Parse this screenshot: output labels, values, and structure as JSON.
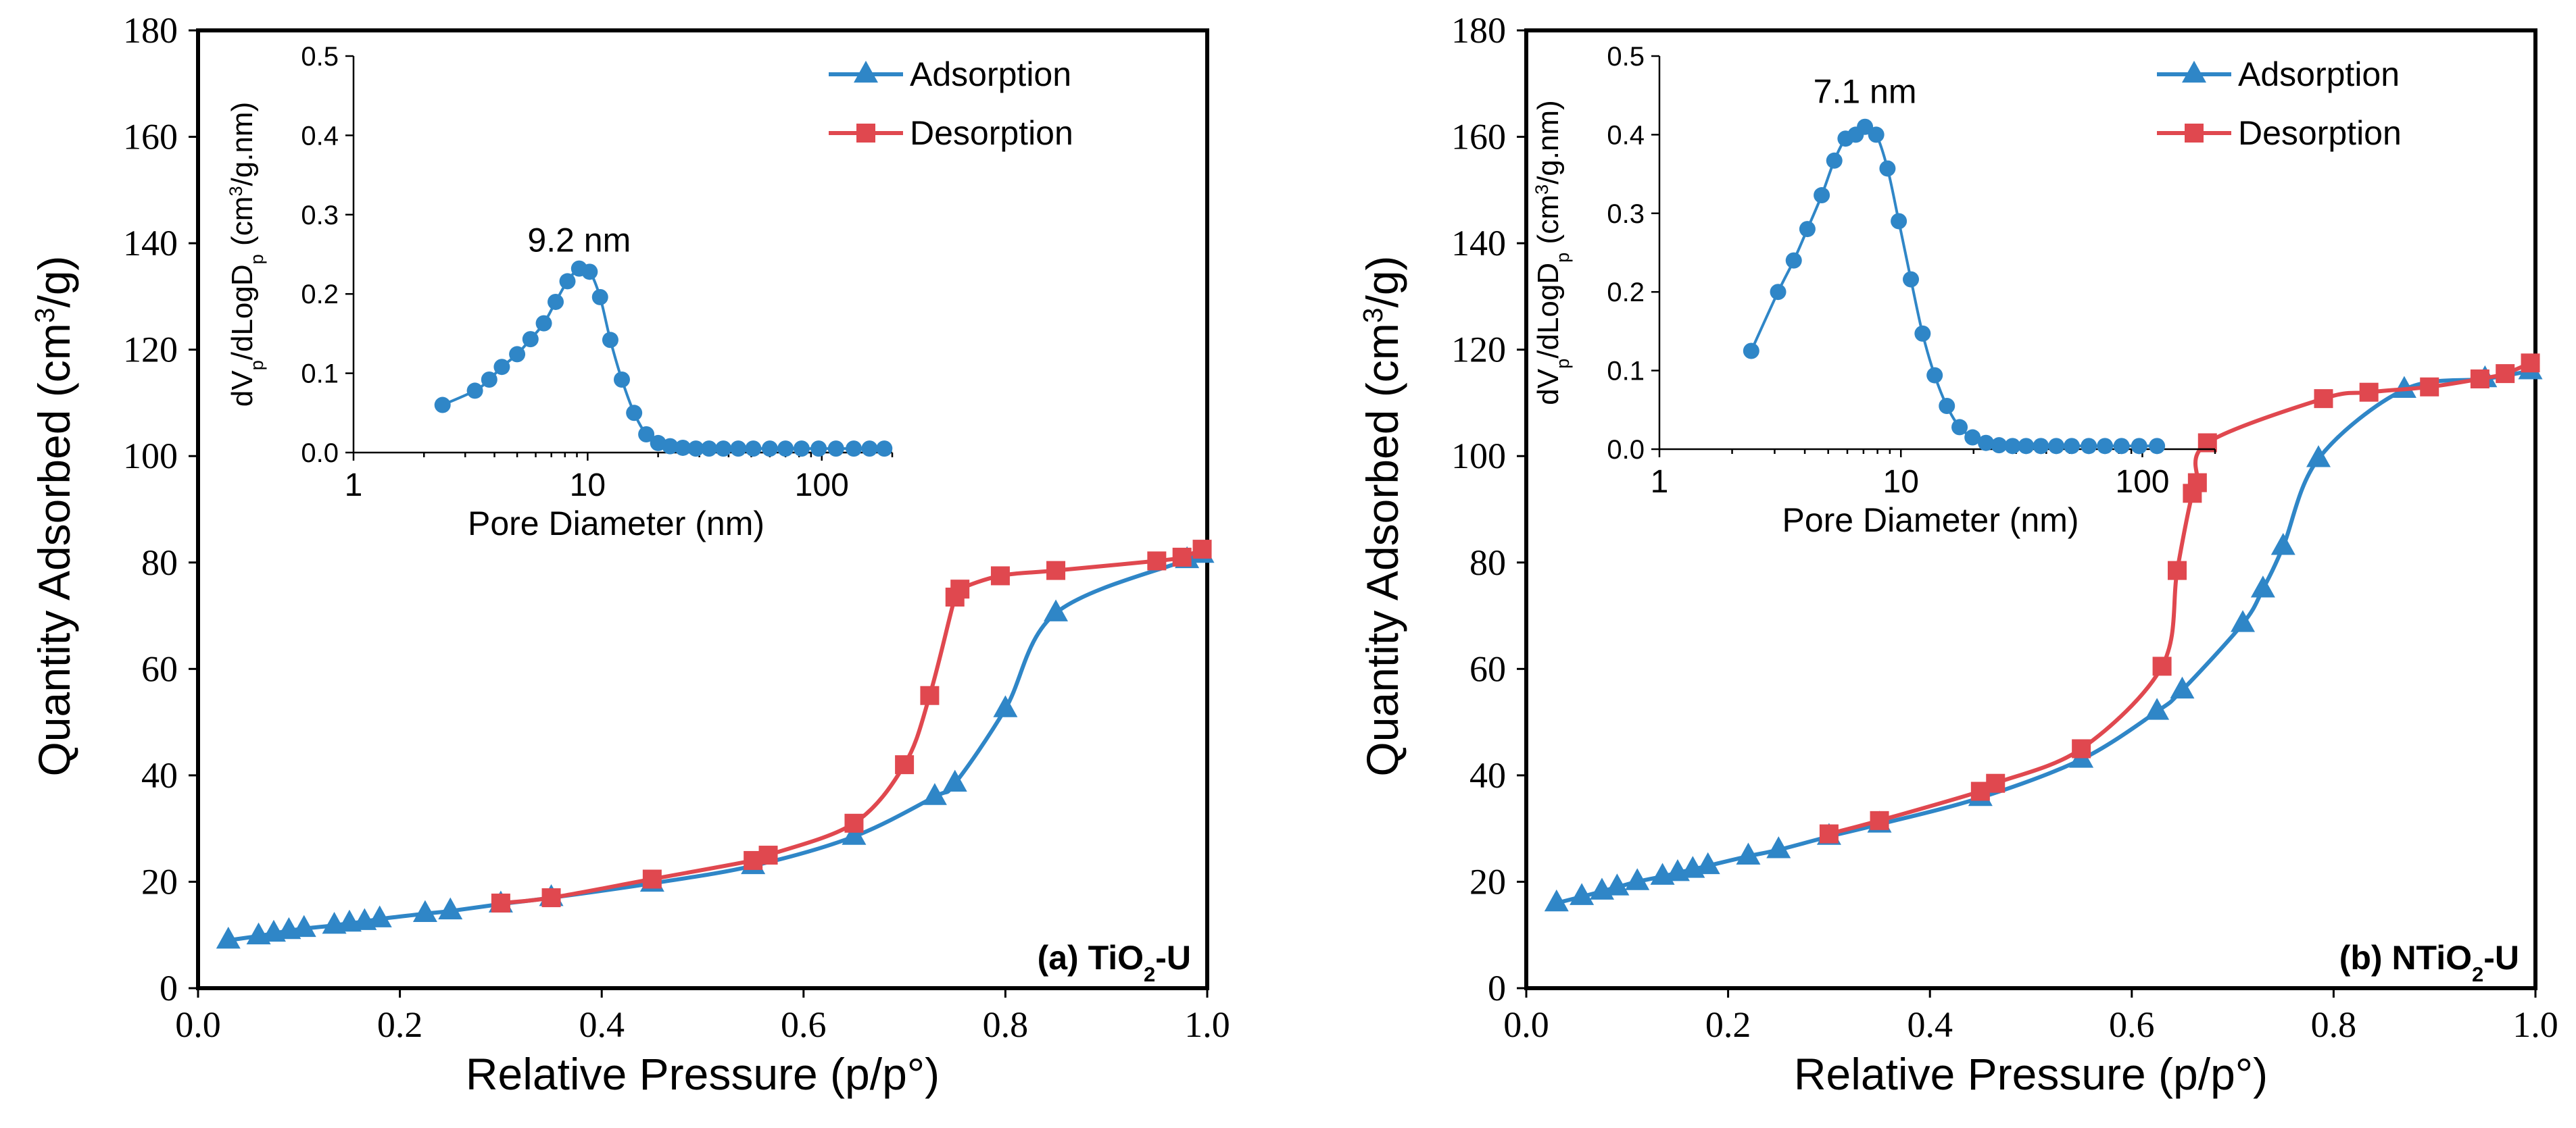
{
  "colors": {
    "adsorption": "#2f86c7",
    "desorption": "#e0484f",
    "psd": "#2f86c7"
  },
  "chart_data": [
    {
      "type": "line",
      "xlabel": "Relative Pressure (p/p°)",
      "ylabel_parts": [
        "Quantity Adsorbed (cm",
        "3",
        "/g)"
      ],
      "xlim": [
        0,
        1.0
      ],
      "ylim": [
        0,
        180
      ],
      "x_ticks": [
        0,
        0.2,
        0.4,
        0.6,
        0.8,
        1.0
      ],
      "x_tick_labels": [
        "0.0",
        "0.2",
        "0.4",
        "0.6",
        "0.8",
        "1.0"
      ],
      "y_ticks": [
        0,
        20,
        40,
        60,
        80,
        100,
        120,
        140,
        160,
        180
      ],
      "y_tick_labels": [
        "0",
        "20",
        "40",
        "60",
        "80",
        "100",
        "120",
        "140",
        "160",
        "180"
      ],
      "legend": [
        "Adsorption",
        "Desorption"
      ],
      "legend_position": "top-right",
      "label_parts": [
        "(a) TiO",
        "2",
        "-U"
      ],
      "series": [
        {
          "name": "Adsorption",
          "x": [
            0.03,
            0.06,
            0.075,
            0.09,
            0.105,
            0.135,
            0.15,
            0.165,
            0.18,
            0.225,
            0.25,
            0.3,
            0.35,
            0.45,
            0.55,
            0.65,
            0.73,
            0.75,
            0.8,
            0.85,
            0.98,
            0.995
          ],
          "y": [
            9.0,
            9.8,
            10.3,
            10.8,
            11.2,
            11.8,
            12.2,
            12.5,
            13.0,
            14.0,
            14.5,
            15.8,
            17.0,
            19.7,
            23.0,
            28.5,
            36.0,
            38.5,
            52.5,
            70.5,
            80.5,
            81.5
          ]
        },
        {
          "name": "Desorption",
          "x": [
            0.995,
            0.975,
            0.95,
            0.85,
            0.795,
            0.755,
            0.75,
            0.725,
            0.7,
            0.65,
            0.565,
            0.55,
            0.45,
            0.35,
            0.3
          ],
          "y": [
            82.5,
            81.0,
            80.3,
            78.5,
            77.5,
            75.0,
            73.5,
            55.0,
            42.0,
            31.0,
            25.0,
            24.0,
            20.5,
            17.0,
            16.0
          ]
        }
      ],
      "inset": {
        "type": "line",
        "xscale": "log",
        "xlabel": "Pore Diameter (nm)",
        "ylabel_parts": [
          "dV",
          "p",
          "/dLogD",
          "p",
          " (cm",
          "3",
          "/g.nm)"
        ],
        "xlim": [
          1,
          200
        ],
        "ylim": [
          0,
          0.5
        ],
        "x_ticks": [
          1,
          10,
          100
        ],
        "x_tick_labels": [
          "1",
          "10",
          "100"
        ],
        "y_ticks": [
          0,
          0.1,
          0.2,
          0.3,
          0.4,
          0.5
        ],
        "y_tick_labels": [
          "0.0",
          "0.1",
          "0.2",
          "0.3",
          "0.4",
          "0.5"
        ],
        "annotation": "9.2 nm",
        "annotation_at": [
          9.2,
          0.243
        ],
        "x": [
          2.4,
          3.3,
          3.8,
          4.3,
          5.0,
          5.7,
          6.5,
          7.3,
          8.2,
          9.2,
          10.2,
          11.3,
          12.5,
          14.0,
          15.8,
          17.8,
          20.0,
          22.5,
          25.5,
          29.0,
          33.0,
          38.0,
          44.0,
          51.0,
          60.0,
          70.0,
          82.0,
          97.0,
          115.0,
          137.0,
          160.0,
          185.0
        ],
        "y": [
          0.06,
          0.078,
          0.092,
          0.108,
          0.124,
          0.143,
          0.163,
          0.19,
          0.216,
          0.232,
          0.228,
          0.196,
          0.142,
          0.092,
          0.05,
          0.023,
          0.012,
          0.008,
          0.006,
          0.005,
          0.005,
          0.005,
          0.005,
          0.005,
          0.005,
          0.005,
          0.005,
          0.005,
          0.005,
          0.005,
          0.005,
          0.005
        ]
      }
    },
    {
      "type": "line",
      "xlabel": "Relative Pressure (p/p°)",
      "ylabel_parts": [
        "Quantity Adsorbed (cm",
        "3",
        "/g)"
      ],
      "xlim": [
        0,
        1.0
      ],
      "ylim": [
        0,
        180
      ],
      "x_ticks": [
        0,
        0.2,
        0.4,
        0.6,
        0.8,
        1.0
      ],
      "x_tick_labels": [
        "0.0",
        "0.2",
        "0.4",
        "0.6",
        "0.8",
        "1.0"
      ],
      "y_ticks": [
        0,
        20,
        40,
        60,
        80,
        100,
        120,
        140,
        160,
        180
      ],
      "y_tick_labels": [
        "0",
        "20",
        "40",
        "60",
        "80",
        "100",
        "120",
        "140",
        "160",
        "180"
      ],
      "legend": [
        "Adsorption",
        "Desorption"
      ],
      "legend_position": "top-right",
      "label_parts": [
        "(b) NTiO",
        "2",
        "-U"
      ],
      "series": [
        {
          "name": "Adsorption",
          "x": [
            0.03,
            0.055,
            0.075,
            0.09,
            0.11,
            0.135,
            0.15,
            0.165,
            0.18,
            0.22,
            0.25,
            0.3,
            0.35,
            0.45,
            0.55,
            0.625,
            0.65,
            0.71,
            0.73,
            0.75,
            0.785,
            0.87,
            0.95,
            0.995
          ],
          "y": [
            16.0,
            17.2,
            18.2,
            19.0,
            20.0,
            21.0,
            21.7,
            22.3,
            23.0,
            24.8,
            26.0,
            28.5,
            30.8,
            35.8,
            43.0,
            52.0,
            56.0,
            68.5,
            75.0,
            83.0,
            99.5,
            112.5,
            114.5,
            116.0
          ]
        },
        {
          "name": "Desorption",
          "x": [
            0.995,
            0.97,
            0.945,
            0.895,
            0.835,
            0.79,
            0.675,
            0.665,
            0.66,
            0.645,
            0.63,
            0.55,
            0.465,
            0.45,
            0.35,
            0.3
          ],
          "y": [
            117.5,
            115.5,
            114.5,
            113.0,
            112.0,
            110.8,
            102.5,
            95.0,
            93.0,
            78.5,
            60.5,
            45.0,
            38.5,
            37.0,
            31.5,
            29.0
          ]
        }
      ],
      "inset": {
        "type": "line",
        "xscale": "log",
        "xlabel": "Pore Diameter (nm)",
        "ylabel_parts": [
          "dV",
          "p",
          "/dLogD",
          "p",
          " (cm",
          "3",
          "/g.nm)"
        ],
        "xlim": [
          1,
          200
        ],
        "ylim": [
          0,
          0.5
        ],
        "x_ticks": [
          1,
          10,
          100
        ],
        "x_tick_labels": [
          "1",
          "10",
          "100"
        ],
        "y_ticks": [
          0,
          0.1,
          0.2,
          0.3,
          0.4,
          0.5
        ],
        "y_tick_labels": [
          "0.0",
          "0.1",
          "0.2",
          "0.3",
          "0.4",
          "0.5"
        ],
        "annotation": "7.1 nm",
        "annotation_at": [
          7.1,
          0.43
        ],
        "x": [
          2.4,
          3.1,
          3.6,
          4.1,
          4.7,
          5.3,
          5.9,
          6.5,
          7.1,
          7.9,
          8.8,
          9.8,
          11.0,
          12.3,
          13.8,
          15.5,
          17.5,
          19.8,
          22.5,
          25.5,
          29.0,
          33.0,
          38.0,
          44.0,
          51.0,
          60.0,
          70.0,
          82.0,
          97.0,
          115.0
        ],
        "y": [
          0.125,
          0.2,
          0.24,
          0.28,
          0.323,
          0.367,
          0.395,
          0.4,
          0.41,
          0.4,
          0.357,
          0.29,
          0.216,
          0.147,
          0.094,
          0.055,
          0.028,
          0.015,
          0.008,
          0.005,
          0.004,
          0.004,
          0.004,
          0.004,
          0.004,
          0.004,
          0.004,
          0.004,
          0.004,
          0.004
        ]
      }
    }
  ]
}
